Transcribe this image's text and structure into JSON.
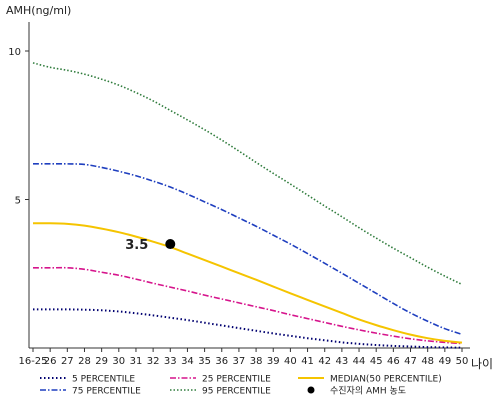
{
  "chart_data": {
    "type": "line",
    "ylabel": "AMH(ng/ml)",
    "xlabel": "나이",
    "categories": [
      "16-25",
      "26",
      "27",
      "28",
      "29",
      "30",
      "31",
      "32",
      "33",
      "34",
      "35",
      "36",
      "37",
      "38",
      "39",
      "40",
      "41",
      "42",
      "43",
      "44",
      "45",
      "46",
      "47",
      "48",
      "49",
      "50"
    ],
    "yticks": [
      5,
      10
    ],
    "ylim": [
      0,
      11
    ],
    "legend_position": "bottom",
    "series": [
      {
        "name": "5 PERCENTILE",
        "color": "#000070",
        "dash": "1.5,2.5",
        "width": 2,
        "values": [
          1.3,
          1.3,
          1.3,
          1.29,
          1.27,
          1.23,
          1.17,
          1.1,
          1.02,
          0.94,
          0.85,
          0.76,
          0.67,
          0.58,
          0.49,
          0.41,
          0.33,
          0.26,
          0.19,
          0.14,
          0.1,
          0.07,
          0.05,
          0.03,
          0.02,
          0.01
        ]
      },
      {
        "name": "25 PERCENTILE",
        "color": "#d6148c",
        "dash": "6,2,1.5,2",
        "width": 1.6,
        "values": [
          2.7,
          2.7,
          2.7,
          2.65,
          2.55,
          2.45,
          2.32,
          2.18,
          2.05,
          1.92,
          1.78,
          1.65,
          1.52,
          1.39,
          1.26,
          1.12,
          0.99,
          0.86,
          0.73,
          0.61,
          0.5,
          0.4,
          0.31,
          0.24,
          0.19,
          0.15
        ]
      },
      {
        "name": "MEDIAN(50 PERCENTILE)",
        "color": "#f5c400",
        "dash": "",
        "width": 2,
        "values": [
          4.2,
          4.2,
          4.18,
          4.12,
          4.02,
          3.9,
          3.75,
          3.58,
          3.4,
          3.18,
          2.96,
          2.74,
          2.52,
          2.3,
          2.07,
          1.84,
          1.62,
          1.4,
          1.18,
          0.96,
          0.77,
          0.6,
          0.45,
          0.33,
          0.24,
          0.18
        ]
      },
      {
        "name": "75 PERCENTILE",
        "color": "#1f3fbf",
        "dash": "6,2,1.5,2",
        "width": 1.6,
        "values": [
          6.2,
          6.2,
          6.2,
          6.18,
          6.08,
          5.95,
          5.8,
          5.62,
          5.42,
          5.18,
          4.92,
          4.66,
          4.38,
          4.1,
          3.8,
          3.5,
          3.18,
          2.85,
          2.52,
          2.18,
          1.84,
          1.5,
          1.18,
          0.9,
          0.65,
          0.46
        ]
      },
      {
        "name": "95 PERCENTILE",
        "color": "#2e7b3b",
        "dash": "1.5,2",
        "width": 1.6,
        "values": [
          9.6,
          9.45,
          9.35,
          9.22,
          9.05,
          8.85,
          8.6,
          8.32,
          8.0,
          7.68,
          7.35,
          7.0,
          6.63,
          6.25,
          5.88,
          5.52,
          5.15,
          4.78,
          4.42,
          4.05,
          3.7,
          3.36,
          3.04,
          2.72,
          2.42,
          2.14
        ]
      }
    ],
    "marker": {
      "name": "수진자의 AMH 농도",
      "x": "33",
      "y": 3.5,
      "label": "3.5",
      "color": "#000000"
    },
    "legend_layout": [
      [
        "5 PERCENTILE",
        "25 PERCENTILE",
        "MEDIAN(50 PERCENTILE)"
      ],
      [
        "75 PERCENTILE",
        "95 PERCENTILE",
        "수진자의 AMH 농도"
      ]
    ]
  }
}
